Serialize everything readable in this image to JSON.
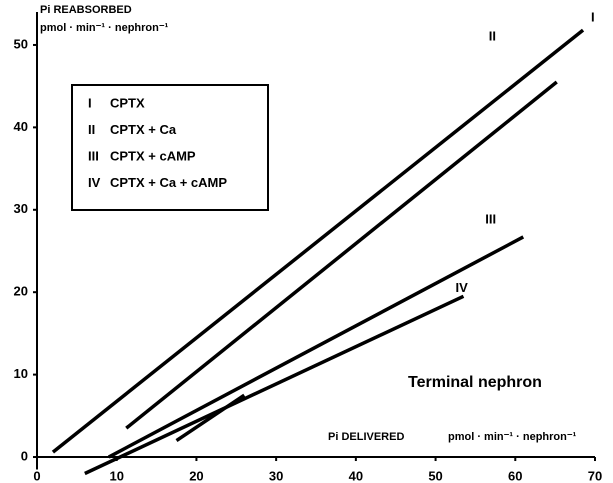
{
  "chart_data": {
    "type": "line",
    "y_label": "Pi REABSORBED",
    "y_unit": "pmol · min⁻¹ · nephron⁻¹",
    "x_label": "Pi DELIVERED",
    "x_unit": "pmol · min⁻¹ · nephron⁻¹",
    "annotation": "Terminal nephron",
    "xlim": [
      0,
      70
    ],
    "xticks": [
      0,
      10,
      20,
      30,
      40,
      50,
      60,
      70
    ],
    "ylim": [
      -2,
      54
    ],
    "yticks": [
      0,
      10,
      20,
      30,
      40,
      50
    ],
    "series": [
      {
        "name": "I",
        "legend": "CPTX",
        "color": "#000000",
        "x": [
          2,
          68.5
        ],
        "values": [
          0.6,
          51.8
        ]
      },
      {
        "name": "II",
        "legend": "CPTX + Ca",
        "color": "#000000",
        "x": [
          11.2,
          65.2
        ],
        "values": [
          3.5,
          45.5
        ]
      },
      {
        "name": "III",
        "legend": "CPTX + cAMP",
        "color": "#000000",
        "x": [
          9,
          61
        ],
        "values": [
          0,
          26.7
        ]
      },
      {
        "name": "IV",
        "legend": "CPTX + Ca + cAMP",
        "color": "#000000",
        "x": [
          6,
          53.5
        ],
        "values": [
          -2,
          19.5
        ]
      },
      {
        "color": "#000000",
        "x": [
          17.5,
          26
        ],
        "values": [
          2,
          7.5
        ]
      }
    ]
  }
}
